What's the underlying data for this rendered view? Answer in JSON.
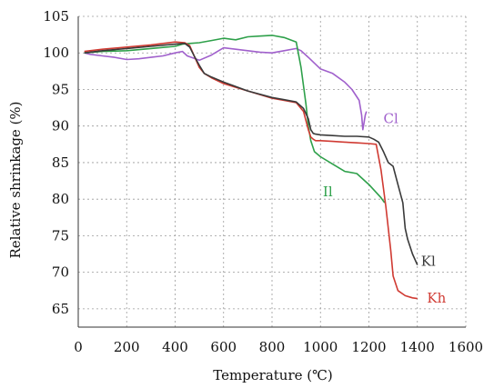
{
  "chart_data": {
    "type": "line",
    "title": "",
    "xlabel": "Temperature (℃)",
    "ylabel": "Relative shrinkage  (%)",
    "xlim": [
      0,
      1600
    ],
    "ylim": [
      62.5,
      105
    ],
    "xticks": [
      0,
      200,
      400,
      600,
      800,
      1000,
      1200,
      1400,
      1600
    ],
    "yticks": [
      65,
      70,
      75,
      80,
      85,
      90,
      95,
      100,
      105
    ],
    "grid": true,
    "legend": "inline labels near line ends",
    "series": [
      {
        "name": "Cl",
        "color": "#a060cc",
        "label_at": [
          1260,
          91
        ],
        "x": [
          25,
          50,
          100,
          150,
          200,
          250,
          300,
          350,
          400,
          430,
          450,
          500,
          550,
          600,
          650,
          700,
          750,
          800,
          850,
          900,
          920,
          950,
          1000,
          1050,
          1100,
          1130,
          1160,
          1170,
          1175,
          1180,
          1185,
          1190
        ],
        "y": [
          100,
          99.8,
          99.6,
          99.4,
          99.1,
          99.2,
          99.4,
          99.6,
          100,
          100.2,
          99.6,
          99,
          99.7,
          100.7,
          100.5,
          100.3,
          100.1,
          100,
          100.3,
          100.6,
          100.3,
          99.4,
          97.8,
          97.2,
          96,
          95,
          93.5,
          91.5,
          89.5,
          90.5,
          91.5,
          92
        ]
      },
      {
        "name": "Il",
        "color": "#2ea04a",
        "label_at": [
          1010,
          81
        ],
        "x": [
          25,
          100,
          200,
          300,
          400,
          430,
          460,
          500,
          550,
          600,
          650,
          700,
          750,
          800,
          850,
          900,
          920,
          940,
          950,
          960,
          975,
          1000,
          1050,
          1100,
          1150,
          1200,
          1250,
          1265
        ],
        "y": [
          100,
          100.2,
          100.3,
          100.6,
          100.9,
          101.2,
          101.3,
          101.4,
          101.7,
          102,
          101.8,
          102.2,
          102.3,
          102.4,
          102.1,
          101.5,
          98,
          93,
          90,
          88,
          86.5,
          85.8,
          84.8,
          83.8,
          83.5,
          82,
          80.2,
          79.5
        ]
      },
      {
        "name": "Kh",
        "color": "#d03a32",
        "label_at": [
          1440,
          66.5
        ],
        "x": [
          25,
          100,
          200,
          300,
          350,
          400,
          440,
          460,
          480,
          500,
          520,
          550,
          600,
          700,
          800,
          850,
          900,
          930,
          950,
          960,
          970,
          980,
          1000,
          1050,
          1100,
          1150,
          1200,
          1230,
          1250,
          1270,
          1290,
          1300,
          1320,
          1350,
          1380,
          1400
        ],
        "y": [
          100.2,
          100.5,
          100.8,
          101.1,
          101.3,
          101.5,
          101.4,
          101,
          99.5,
          98,
          97.2,
          96.6,
          95.8,
          94.8,
          93.8,
          93.5,
          93.2,
          92,
          89.5,
          88.5,
          88.2,
          88,
          88,
          87.9,
          87.8,
          87.7,
          87.6,
          87.5,
          84,
          79,
          73,
          69.5,
          67.5,
          66.8,
          66.5,
          66.4
        ]
      },
      {
        "name": "Kl",
        "color": "#3a3a3a",
        "label_at": [
          1415,
          71.5
        ],
        "x": [
          25,
          100,
          200,
          300,
          400,
          440,
          460,
          480,
          500,
          520,
          550,
          600,
          700,
          800,
          850,
          900,
          930,
          950,
          960,
          970,
          980,
          1000,
          1050,
          1100,
          1150,
          1200,
          1220,
          1240,
          1260,
          1280,
          1300,
          1320,
          1340,
          1350,
          1360,
          1380,
          1400
        ],
        "y": [
          100,
          100.3,
          100.6,
          100.9,
          101.2,
          101.3,
          100.8,
          99.5,
          98.3,
          97.2,
          96.7,
          96,
          94.8,
          93.9,
          93.6,
          93.3,
          92.4,
          91,
          89.5,
          89,
          88.9,
          88.8,
          88.7,
          88.6,
          88.6,
          88.5,
          88.2,
          87.8,
          86.5,
          85,
          84.5,
          82,
          79.5,
          76,
          74.5,
          72.5,
          71
        ]
      }
    ]
  }
}
